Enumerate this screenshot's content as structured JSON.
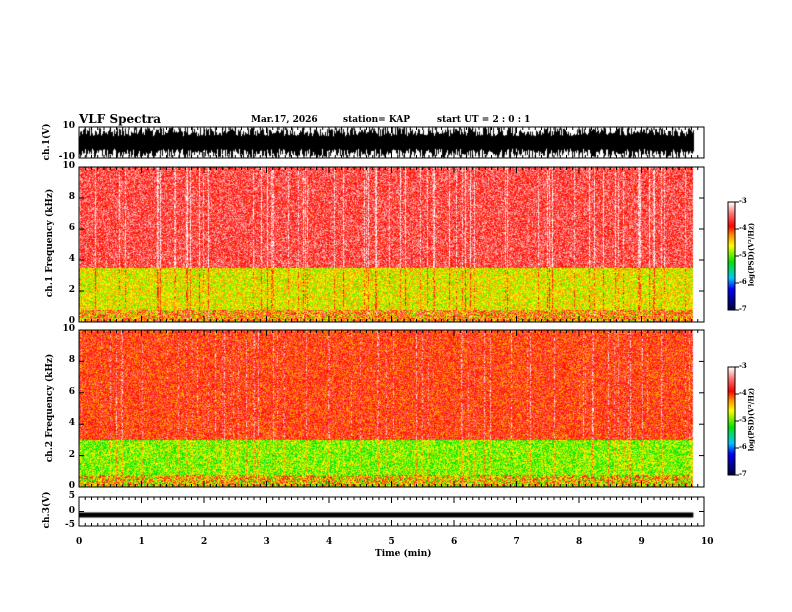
{
  "header": {
    "title": "VLF Spectra",
    "date": "Mar.17, 2026",
    "station": "station= KAP",
    "start": "start  UT  =   2  : 0  : 1"
  },
  "chart_data": [
    {
      "type": "line",
      "name": "ch1 waveform",
      "ylabel": "ch.1(V)",
      "ylim": [
        -10,
        10
      ],
      "yticks": [
        "10",
        "-10"
      ],
      "description_values": "dense noise filling -10..10"
    },
    {
      "type": "heatmap",
      "name": "ch1 spectrogram",
      "ylabel": "ch.1 Frequency (kHz)",
      "ylim": [
        0,
        10
      ],
      "yticks": [
        "0",
        "2",
        "4",
        "6",
        "8",
        "10"
      ],
      "colorbar": {
        "label": "log(PSD)(V²/Hz)",
        "range": [
          -7,
          -3
        ],
        "ticks": [
          "-3",
          "-4",
          "-5",
          "-6",
          "-7"
        ]
      },
      "bands": [
        {
          "from": 0,
          "to": 3.5,
          "level": -4.6
        },
        {
          "from": 3.5,
          "to": 10,
          "level": -3.6
        }
      ]
    },
    {
      "type": "heatmap",
      "name": "ch2 spectrogram",
      "ylabel": "ch.2 Frequency (kHz)",
      "ylim": [
        0,
        10
      ],
      "yticks": [
        "0",
        "2",
        "4",
        "6",
        "8",
        "10"
      ],
      "colorbar": {
        "label": "log(PSD)(V²/Hz)",
        "range": [
          -7,
          -3
        ],
        "ticks": [
          "-3",
          "-4",
          "-5",
          "-6",
          "-7"
        ]
      },
      "bands": [
        {
          "from": 0,
          "to": 3,
          "level": -4.9
        },
        {
          "from": 3,
          "to": 10,
          "level": -3.9
        }
      ]
    },
    {
      "type": "line",
      "name": "ch3 waveform",
      "ylabel": "ch.3(V)",
      "ylim": [
        -5,
        5
      ],
      "yticks": [
        "5",
        "0",
        "-5"
      ],
      "constant_value": -1.2
    }
  ],
  "xaxis": {
    "label": "Time  (min)",
    "range": [
      0,
      10
    ],
    "data_end": 9.83,
    "ticks": [
      "0",
      "1",
      "2",
      "3",
      "4",
      "5",
      "6",
      "7",
      "8",
      "9",
      "10"
    ]
  }
}
